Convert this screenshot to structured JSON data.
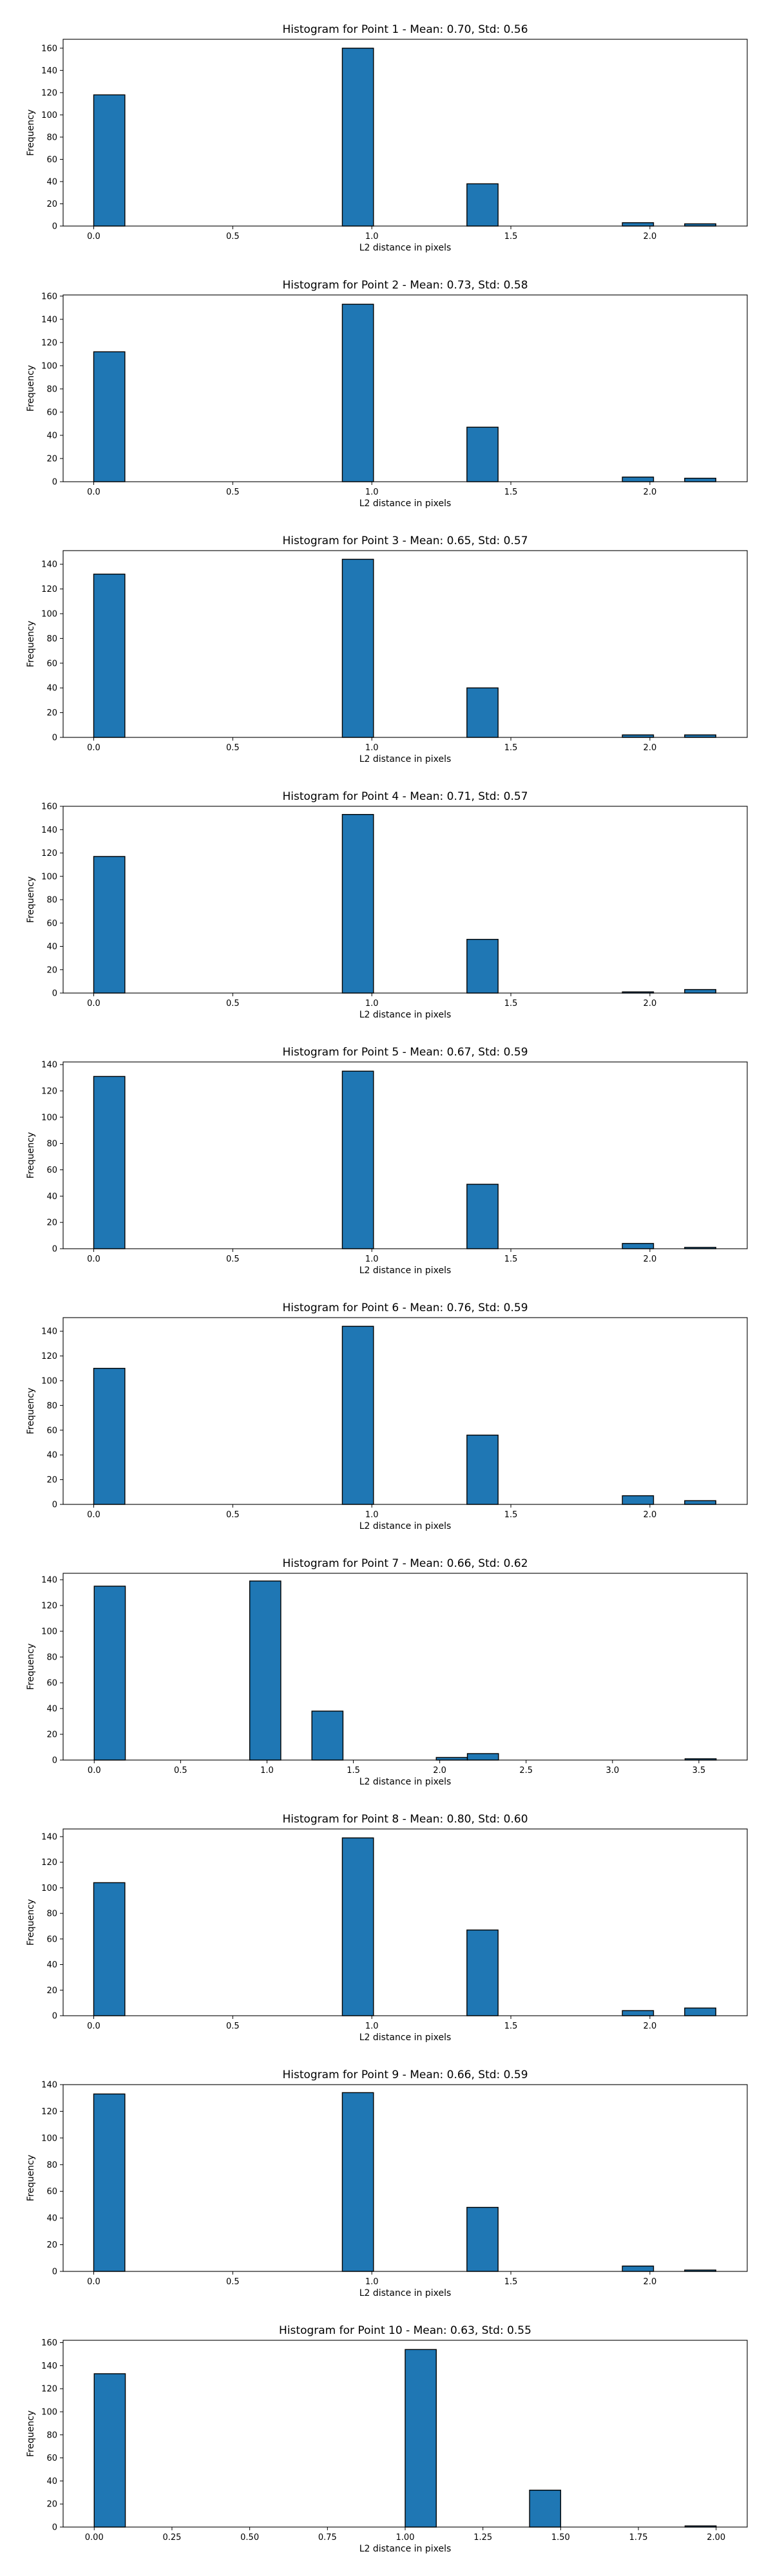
{
  "chart_data": [
    {
      "type": "bar",
      "title": "Histogram for Point 1 - Mean: 0.70, Std: 0.56",
      "xlabel": "L2 distance in pixels",
      "ylabel": "Frequency",
      "xlim": [
        -0.11,
        2.35
      ],
      "ylim": [
        0,
        168
      ],
      "xticks": [
        0.0,
        0.5,
        1.0,
        1.5,
        2.0
      ],
      "xtick_labels": [
        "0.0",
        "0.5",
        "1.0",
        "1.5",
        "2.0"
      ],
      "yticks": [
        0,
        20,
        40,
        60,
        80,
        100,
        120,
        140,
        160
      ],
      "ytick_labels": [
        "0",
        "20",
        "40",
        "60",
        "80",
        "100",
        "120",
        "140",
        "160"
      ],
      "bars": [
        {
          "x0": 0.0,
          "x1": 0.112,
          "value": 118
        },
        {
          "x0": 0.894,
          "x1": 1.006,
          "value": 160
        },
        {
          "x0": 1.342,
          "x1": 1.454,
          "value": 38
        },
        {
          "x0": 1.901,
          "x1": 2.013,
          "value": 3
        },
        {
          "x0": 2.125,
          "x1": 2.237,
          "value": 2
        }
      ]
    },
    {
      "type": "bar",
      "title": "Histogram for Point 2 - Mean: 0.73, Std: 0.58",
      "xlabel": "L2 distance in pixels",
      "ylabel": "Frequency",
      "xlim": [
        -0.11,
        2.35
      ],
      "ylim": [
        0,
        161
      ],
      "xticks": [
        0.0,
        0.5,
        1.0,
        1.5,
        2.0
      ],
      "xtick_labels": [
        "0.0",
        "0.5",
        "1.0",
        "1.5",
        "2.0"
      ],
      "yticks": [
        0,
        20,
        40,
        60,
        80,
        100,
        120,
        140,
        160
      ],
      "ytick_labels": [
        "0",
        "20",
        "40",
        "60",
        "80",
        "100",
        "120",
        "140",
        "160"
      ],
      "bars": [
        {
          "x0": 0.0,
          "x1": 0.112,
          "value": 112
        },
        {
          "x0": 0.894,
          "x1": 1.006,
          "value": 153
        },
        {
          "x0": 1.342,
          "x1": 1.454,
          "value": 47
        },
        {
          "x0": 1.901,
          "x1": 2.013,
          "value": 4
        },
        {
          "x0": 2.125,
          "x1": 2.237,
          "value": 3
        }
      ]
    },
    {
      "type": "bar",
      "title": "Histogram for Point 3 - Mean: 0.65, Std: 0.57",
      "xlabel": "L2 distance in pixels",
      "ylabel": "Frequency",
      "xlim": [
        -0.11,
        2.35
      ],
      "ylim": [
        0,
        151
      ],
      "xticks": [
        0.0,
        0.5,
        1.0,
        1.5,
        2.0
      ],
      "xtick_labels": [
        "0.0",
        "0.5",
        "1.0",
        "1.5",
        "2.0"
      ],
      "yticks": [
        0,
        20,
        40,
        60,
        80,
        100,
        120,
        140
      ],
      "ytick_labels": [
        "0",
        "20",
        "40",
        "60",
        "80",
        "100",
        "120",
        "140"
      ],
      "bars": [
        {
          "x0": 0.0,
          "x1": 0.112,
          "value": 132
        },
        {
          "x0": 0.894,
          "x1": 1.006,
          "value": 144
        },
        {
          "x0": 1.342,
          "x1": 1.454,
          "value": 40
        },
        {
          "x0": 1.901,
          "x1": 2.013,
          "value": 2
        },
        {
          "x0": 2.125,
          "x1": 2.237,
          "value": 2
        }
      ]
    },
    {
      "type": "bar",
      "title": "Histogram for Point 4 - Mean: 0.71, Std: 0.57",
      "xlabel": "L2 distance in pixels",
      "ylabel": "Frequency",
      "xlim": [
        -0.11,
        2.35
      ],
      "ylim": [
        0,
        160
      ],
      "xticks": [
        0.0,
        0.5,
        1.0,
        1.5,
        2.0
      ],
      "xtick_labels": [
        "0.0",
        "0.5",
        "1.0",
        "1.5",
        "2.0"
      ],
      "yticks": [
        0,
        20,
        40,
        60,
        80,
        100,
        120,
        140,
        160
      ],
      "ytick_labels": [
        "0",
        "20",
        "40",
        "60",
        "80",
        "100",
        "120",
        "140",
        "160"
      ],
      "bars": [
        {
          "x0": 0.0,
          "x1": 0.112,
          "value": 117
        },
        {
          "x0": 0.894,
          "x1": 1.006,
          "value": 153
        },
        {
          "x0": 1.342,
          "x1": 1.454,
          "value": 46
        },
        {
          "x0": 1.901,
          "x1": 2.013,
          "value": 1
        },
        {
          "x0": 2.125,
          "x1": 2.237,
          "value": 3
        }
      ]
    },
    {
      "type": "bar",
      "title": "Histogram for Point 5 - Mean: 0.67, Std: 0.59",
      "xlabel": "L2 distance in pixels",
      "ylabel": "Frequency",
      "xlim": [
        -0.11,
        2.35
      ],
      "ylim": [
        0,
        142
      ],
      "xticks": [
        0.0,
        0.5,
        1.0,
        1.5,
        2.0
      ],
      "xtick_labels": [
        "0.0",
        "0.5",
        "1.0",
        "1.5",
        "2.0"
      ],
      "yticks": [
        0,
        20,
        40,
        60,
        80,
        100,
        120,
        140
      ],
      "ytick_labels": [
        "0",
        "20",
        "40",
        "60",
        "80",
        "100",
        "120",
        "140"
      ],
      "bars": [
        {
          "x0": 0.0,
          "x1": 0.112,
          "value": 131
        },
        {
          "x0": 0.894,
          "x1": 1.006,
          "value": 135
        },
        {
          "x0": 1.342,
          "x1": 1.454,
          "value": 49
        },
        {
          "x0": 1.901,
          "x1": 2.013,
          "value": 4
        },
        {
          "x0": 2.125,
          "x1": 2.237,
          "value": 1
        }
      ]
    },
    {
      "type": "bar",
      "title": "Histogram for Point 6 - Mean: 0.76, Std: 0.59",
      "xlabel": "L2 distance in pixels",
      "ylabel": "Frequency",
      "xlim": [
        -0.11,
        2.35
      ],
      "ylim": [
        0,
        151
      ],
      "xticks": [
        0.0,
        0.5,
        1.0,
        1.5,
        2.0
      ],
      "xtick_labels": [
        "0.0",
        "0.5",
        "1.0",
        "1.5",
        "2.0"
      ],
      "yticks": [
        0,
        20,
        40,
        60,
        80,
        100,
        120,
        140
      ],
      "ytick_labels": [
        "0",
        "20",
        "40",
        "60",
        "80",
        "100",
        "120",
        "140"
      ],
      "bars": [
        {
          "x0": 0.0,
          "x1": 0.112,
          "value": 110
        },
        {
          "x0": 0.894,
          "x1": 1.006,
          "value": 144
        },
        {
          "x0": 1.342,
          "x1": 1.454,
          "value": 56
        },
        {
          "x0": 1.901,
          "x1": 2.013,
          "value": 7
        },
        {
          "x0": 2.125,
          "x1": 2.237,
          "value": 3
        }
      ]
    },
    {
      "type": "bar",
      "title": "Histogram for Point 7 - Mean: 0.66, Std: 0.62",
      "xlabel": "L2 distance in pixels",
      "ylabel": "Frequency",
      "xlim": [
        -0.18,
        3.78
      ],
      "ylim": [
        0,
        145
      ],
      "xticks": [
        0.0,
        0.5,
        1.0,
        1.5,
        2.0,
        2.5,
        3.0,
        3.5
      ],
      "xtick_labels": [
        "0.0",
        "0.5",
        "1.0",
        "1.5",
        "2.0",
        "2.5",
        "3.0",
        "3.5"
      ],
      "yticks": [
        0,
        20,
        40,
        60,
        80,
        100,
        120,
        140
      ],
      "ytick_labels": [
        "0",
        "20",
        "40",
        "60",
        "80",
        "100",
        "120",
        "140"
      ],
      "bars": [
        {
          "x0": 0.0,
          "x1": 0.18,
          "value": 135
        },
        {
          "x0": 0.9,
          "x1": 1.08,
          "value": 139
        },
        {
          "x0": 1.26,
          "x1": 1.44,
          "value": 38
        },
        {
          "x0": 1.98,
          "x1": 2.16,
          "value": 2
        },
        {
          "x0": 2.16,
          "x1": 2.34,
          "value": 5
        },
        {
          "x0": 3.42,
          "x1": 3.6,
          "value": 1
        }
      ]
    },
    {
      "type": "bar",
      "title": "Histogram for Point 8 - Mean: 0.80, Std: 0.60",
      "xlabel": "L2 distance in pixels",
      "ylabel": "Frequency",
      "xlim": [
        -0.11,
        2.35
      ],
      "ylim": [
        0,
        146
      ],
      "xticks": [
        0.0,
        0.5,
        1.0,
        1.5,
        2.0
      ],
      "xtick_labels": [
        "0.0",
        "0.5",
        "1.0",
        "1.5",
        "2.0"
      ],
      "yticks": [
        0,
        20,
        40,
        60,
        80,
        100,
        120,
        140
      ],
      "ytick_labels": [
        "0",
        "20",
        "40",
        "60",
        "80",
        "100",
        "120",
        "140"
      ],
      "bars": [
        {
          "x0": 0.0,
          "x1": 0.112,
          "value": 104
        },
        {
          "x0": 0.894,
          "x1": 1.006,
          "value": 139
        },
        {
          "x0": 1.342,
          "x1": 1.454,
          "value": 67
        },
        {
          "x0": 1.901,
          "x1": 2.013,
          "value": 4
        },
        {
          "x0": 2.125,
          "x1": 2.237,
          "value": 6
        }
      ]
    },
    {
      "type": "bar",
      "title": "Histogram for Point 9 - Mean: 0.66, Std: 0.59",
      "xlabel": "L2 distance in pixels",
      "ylabel": "Frequency",
      "xlim": [
        -0.11,
        2.35
      ],
      "ylim": [
        0,
        140
      ],
      "xticks": [
        0.0,
        0.5,
        1.0,
        1.5,
        2.0
      ],
      "xtick_labels": [
        "0.0",
        "0.5",
        "1.0",
        "1.5",
        "2.0"
      ],
      "yticks": [
        0,
        20,
        40,
        60,
        80,
        100,
        120,
        140
      ],
      "ytick_labels": [
        "0",
        "20",
        "40",
        "60",
        "80",
        "100",
        "120",
        "140"
      ],
      "bars": [
        {
          "x0": 0.0,
          "x1": 0.112,
          "value": 133
        },
        {
          "x0": 0.894,
          "x1": 1.006,
          "value": 134
        },
        {
          "x0": 1.342,
          "x1": 1.454,
          "value": 48
        },
        {
          "x0": 1.901,
          "x1": 2.013,
          "value": 4
        },
        {
          "x0": 2.125,
          "x1": 2.237,
          "value": 1
        }
      ]
    },
    {
      "type": "bar",
      "title": "Histogram for Point 10 - Mean: 0.63, Std: 0.55",
      "xlabel": "L2 distance in pixels",
      "ylabel": "Frequency",
      "xlim": [
        -0.1,
        2.1
      ],
      "ylim": [
        0,
        162
      ],
      "xticks": [
        0.0,
        0.25,
        0.5,
        0.75,
        1.0,
        1.25,
        1.5,
        1.75,
        2.0
      ],
      "xtick_labels": [
        "0.00",
        "0.25",
        "0.50",
        "0.75",
        "1.00",
        "1.25",
        "1.50",
        "1.75",
        "2.00"
      ],
      "yticks": [
        0,
        20,
        40,
        60,
        80,
        100,
        120,
        140,
        160
      ],
      "ytick_labels": [
        "0",
        "20",
        "40",
        "60",
        "80",
        "100",
        "120",
        "140",
        "160"
      ],
      "bars": [
        {
          "x0": 0.0,
          "x1": 0.1,
          "value": 133
        },
        {
          "x0": 1.0,
          "x1": 1.1,
          "value": 154
        },
        {
          "x0": 1.4,
          "x1": 1.5,
          "value": 32
        },
        {
          "x0": 1.9,
          "x1": 2.0,
          "value": 1
        }
      ]
    }
  ],
  "colors": {
    "bar_fill": "#1f77b4",
    "bar_edge": "#000000",
    "axes": "#000000",
    "background": "#ffffff"
  }
}
